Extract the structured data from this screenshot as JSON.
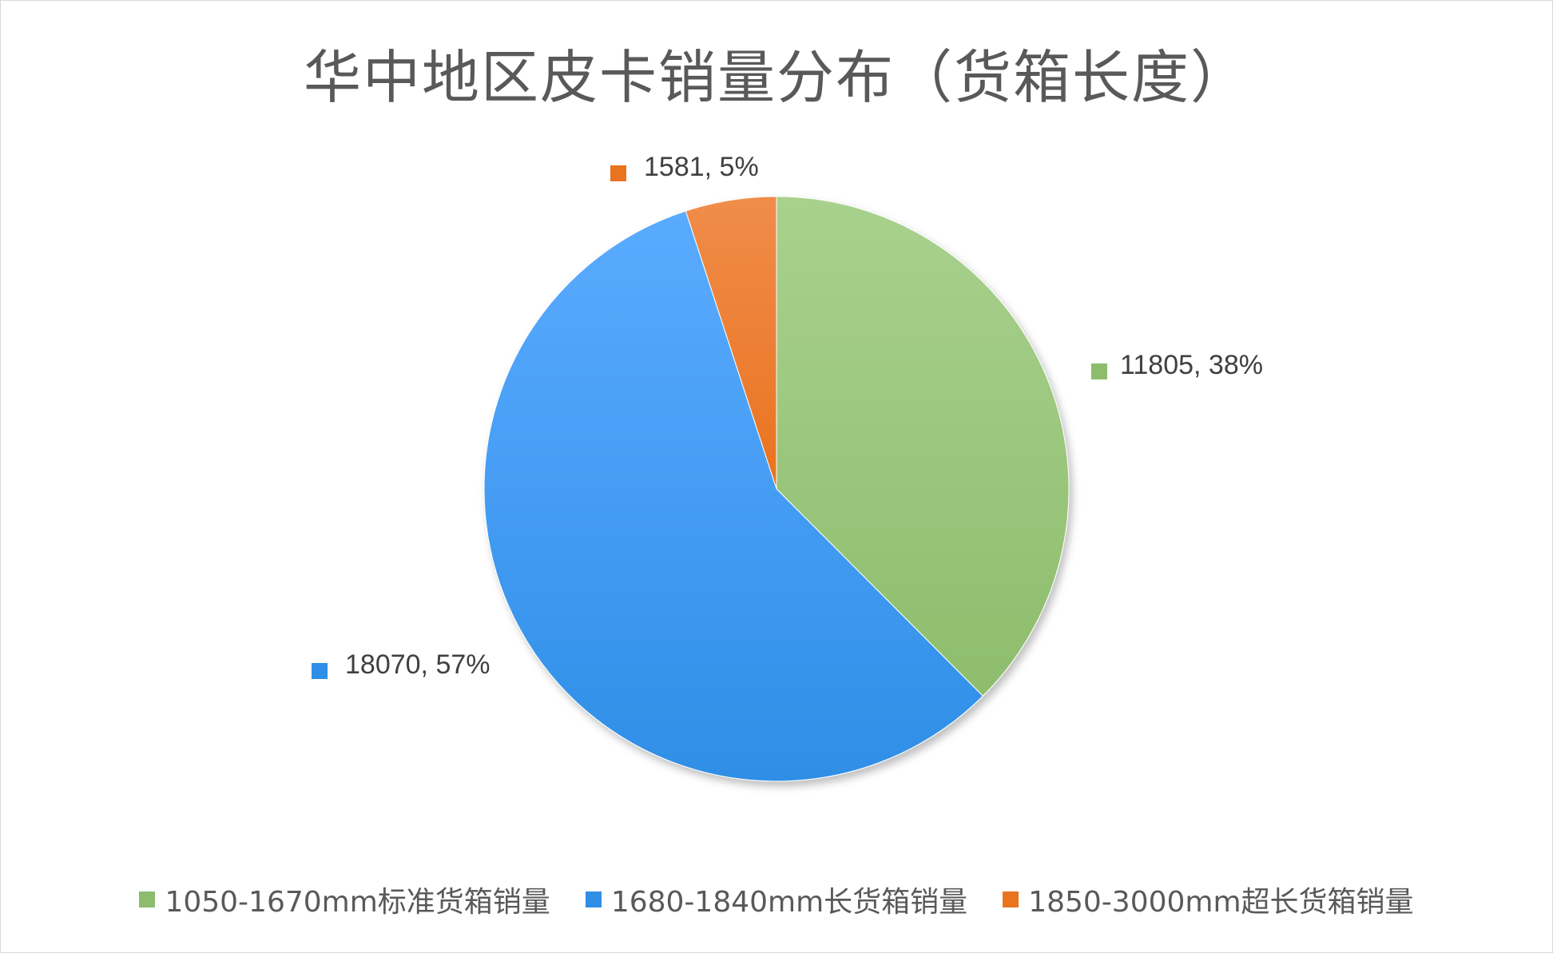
{
  "chart_data": {
    "type": "pie",
    "title": "华中地区皮卡销量分布（货箱长度）",
    "slices": [
      {
        "name": "1050-1670mm标准货箱销量",
        "value": 11805,
        "percent": "38%",
        "label": "11805, 38%",
        "color": "#a9d18e",
        "colorDark": "#8dbd6c"
      },
      {
        "name": "1680-1840mm长货箱销量",
        "value": 18070,
        "percent": "57%",
        "label": "18070, 57%",
        "color": "#5aabff",
        "colorDark": "#2f8ee6"
      },
      {
        "name": "1850-3000mm超长货箱销量",
        "value": 1581,
        "percent": "5%",
        "label": "1581, 5%",
        "color": "#f08c4a",
        "colorDark": "#e9731f"
      }
    ],
    "start_angle": "12 o'clock",
    "direction": "clockwise",
    "legend_position": "bottom"
  }
}
